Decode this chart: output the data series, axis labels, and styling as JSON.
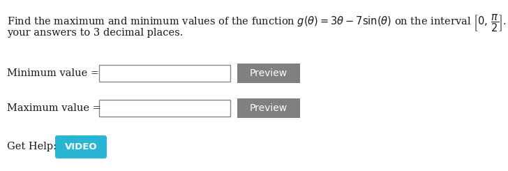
{
  "bg_color": "#ffffff",
  "text_color": "#1a1a1a",
  "preview_btn_color": "#808080",
  "preview_text_color": "#ffffff",
  "preview_label": "Preview",
  "get_help_label": "Get Help:",
  "video_btn_color": "#29b6d5",
  "video_label": "VIDEO",
  "font_size_main": 10.5,
  "font_size_btn": 10.0,
  "font_size_help": 10.5
}
